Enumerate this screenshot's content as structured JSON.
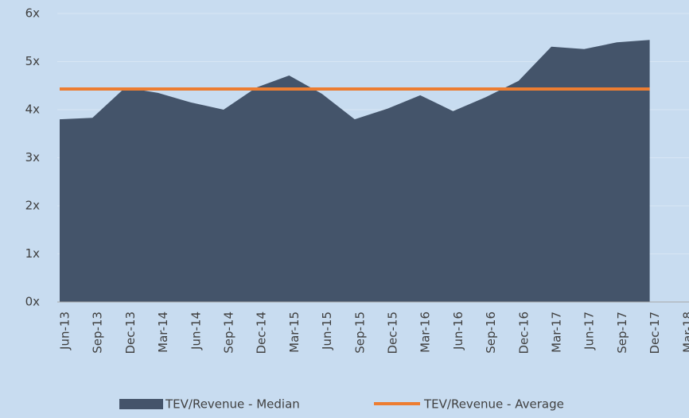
{
  "chart_data": {
    "type": "area",
    "categories": [
      "Jun-13",
      "Sep-13",
      "Dec-13",
      "Mar-14",
      "Jun-14",
      "Sep-14",
      "Dec-14",
      "Mar-15",
      "Jun-15",
      "Sep-15",
      "Dec-15",
      "Mar-16",
      "Jun-16",
      "Sep-16",
      "Dec-16",
      "Mar-17",
      "Jun-17",
      "Sep-17",
      "Dec-17",
      "Mar-18"
    ],
    "series": [
      {
        "name": "TEV/Revenue - Median",
        "color": "#44546a",
        "type": "area",
        "values": [
          3.8,
          3.83,
          4.46,
          4.35,
          4.15,
          4.0,
          4.46,
          4.71,
          4.33,
          3.8,
          4.02,
          4.3,
          3.97,
          4.26,
          4.6,
          5.31,
          5.26,
          5.4,
          5.45,
          null
        ]
      },
      {
        "name": "TEV/Revenue - Average",
        "color": "#ed7d31",
        "type": "line",
        "values": [
          4.43,
          4.43,
          4.43,
          4.43,
          4.43,
          4.43,
          4.43,
          4.43,
          4.43,
          4.43,
          4.43,
          4.43,
          4.43,
          4.43,
          4.43,
          4.43,
          4.43,
          4.43,
          4.43,
          null
        ]
      }
    ],
    "ylim": [
      0,
      6
    ],
    "yticks": [
      {
        "value": 0,
        "label": "0x"
      },
      {
        "value": 1,
        "label": "1x"
      },
      {
        "value": 2,
        "label": "2x"
      },
      {
        "value": 3,
        "label": "3x"
      },
      {
        "value": 4,
        "label": "4x"
      },
      {
        "value": 5,
        "label": "5x"
      },
      {
        "value": 6,
        "label": "6x"
      }
    ],
    "grid": true,
    "legend": "bottom"
  }
}
